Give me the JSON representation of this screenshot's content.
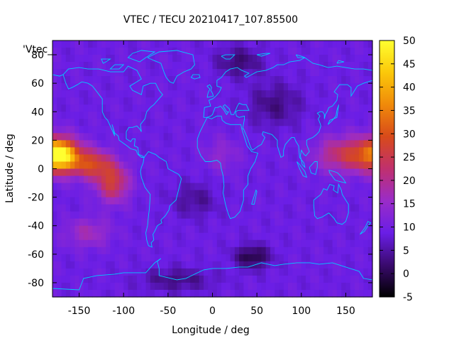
{
  "chart_data": {
    "type": "heatmap",
    "title": "VTEC / TECU 20210417_107.85500",
    "xlabel": "Longitude / deg",
    "ylabel": "Latitude / deg",
    "legend_key": "'Vtec_",
    "xlim": [
      -180,
      180
    ],
    "ylim": [
      -90,
      90
    ],
    "x_ticks": [
      -150,
      -100,
      -50,
      0,
      50,
      100,
      150
    ],
    "y_ticks": [
      -80,
      -60,
      -40,
      -20,
      0,
      20,
      40,
      60,
      80
    ],
    "colorbar": {
      "range": [
        -5,
        50
      ],
      "ticks": [
        -5,
        0,
        5,
        10,
        15,
        20,
        25,
        30,
        35,
        40,
        45,
        50
      ],
      "colormap": [
        "#000000",
        "#3a0a6e",
        "#6a1ee6",
        "#9a2cc8",
        "#c0306e",
        "#d84a1a",
        "#f08a0a",
        "#fbc80a",
        "#ffff30"
      ]
    },
    "grid": {
      "lon_step": 5,
      "lat_step": 5,
      "lon_centers": [
        -177.5,
        -172.5,
        -167.5,
        -162.5,
        -157.5,
        -152.5,
        -147.5,
        -142.5,
        -137.5,
        -132.5,
        -127.5,
        -122.5,
        -117.5,
        -112.5,
        -107.5,
        -102.5,
        -97.5,
        -92.5,
        -87.5,
        -82.5,
        -77.5,
        -72.5,
        -67.5,
        -62.5,
        -57.5,
        -52.5,
        -47.5,
        -42.5,
        -37.5,
        -32.5,
        -27.5,
        -22.5,
        -17.5,
        -12.5,
        -7.5,
        -2.5,
        2.5,
        7.5,
        12.5,
        17.5,
        22.5,
        27.5,
        32.5,
        37.5,
        42.5,
        47.5,
        52.5,
        57.5,
        62.5,
        67.5,
        72.5,
        77.5,
        82.5,
        87.5,
        92.5,
        97.5,
        102.5,
        107.5,
        112.5,
        117.5,
        122.5,
        127.5,
        132.5,
        137.5,
        142.5,
        147.5,
        152.5,
        157.5,
        162.5,
        167.5,
        172.5,
        177.5
      ],
      "lat_centers": [
        87.5,
        82.5,
        77.5,
        72.5,
        67.5,
        62.5,
        57.5,
        52.5,
        47.5,
        42.5,
        37.5,
        32.5,
        27.5,
        22.5,
        17.5,
        12.5,
        7.5,
        2.5,
        -2.5,
        -7.5,
        -12.5,
        -17.5,
        -22.5,
        -27.5,
        -32.5,
        -37.5,
        -42.5,
        -47.5,
        -52.5,
        -57.5,
        -62.5,
        -67.5,
        -72.5,
        -77.5,
        -82.5,
        -87.5
      ],
      "features": {
        "background": 9,
        "blobs": [
          {
            "lon": -172,
            "lat": 9,
            "amp": 24,
            "slon": 22,
            "slat": 11
          },
          {
            "lon": -135,
            "lat": 3,
            "amp": 18,
            "slon": 22,
            "slat": 10
          },
          {
            "lon": -112,
            "lat": -10,
            "amp": 17,
            "slon": 18,
            "slat": 13
          },
          {
            "lon": 180,
            "lat": 10,
            "amp": 25,
            "slon": 26,
            "slat": 12
          },
          {
            "lon": -180,
            "lat": 10,
            "amp": 25,
            "slon": 26,
            "slat": 12
          },
          {
            "lon": 140,
            "lat": 10,
            "amp": 12,
            "slon": 25,
            "slat": 12
          },
          {
            "lon": 10,
            "lat": 10,
            "amp": 5,
            "slon": 20,
            "slat": 12
          },
          {
            "lon": -140,
            "lat": -45,
            "amp": 8,
            "slon": 25,
            "slat": 10
          },
          {
            "lon": 45,
            "lat": -62,
            "amp": -10,
            "slon": 20,
            "slat": 8
          },
          {
            "lon": 30,
            "lat": 75,
            "amp": -7,
            "slon": 25,
            "slat": 10
          },
          {
            "lon": 70,
            "lat": 45,
            "amp": -6,
            "slon": 30,
            "slat": 15
          },
          {
            "lon": -40,
            "lat": -78,
            "amp": -6,
            "slon": 40,
            "slat": 8
          },
          {
            "lon": -20,
            "lat": -22,
            "amp": -5,
            "slon": 25,
            "slat": 12
          }
        ]
      }
    },
    "coastlines_color": "#00ccff"
  }
}
